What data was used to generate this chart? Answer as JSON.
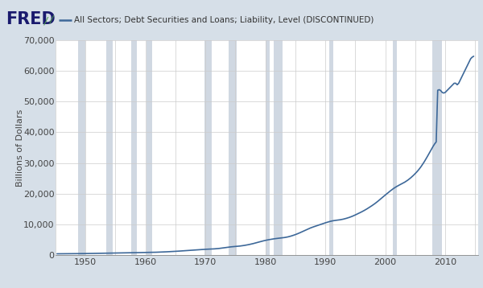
{
  "title": "All Sectors; Debt Securities and Loans; Liability, Level (DISCONTINUED)",
  "ylabel": "Billions of Dollars",
  "line_color": "#3d6899",
  "background_outer": "#d6dfe8",
  "background_inner": "#ffffff",
  "shading_color": "#d0d8e2",
  "ylim": [
    0,
    70000
  ],
  "yticks": [
    0,
    10000,
    20000,
    30000,
    40000,
    50000,
    60000,
    70000
  ],
  "xlim": [
    1945.0,
    2015.5
  ],
  "xticks": [
    1950,
    1960,
    1970,
    1980,
    1990,
    2000,
    2010
  ],
  "recession_bands": [
    [
      1948.75,
      1950.0
    ],
    [
      1953.5,
      1954.5
    ],
    [
      1957.6,
      1958.5
    ],
    [
      1960.2,
      1961.1
    ],
    [
      1969.9,
      1971.0
    ],
    [
      1973.9,
      1975.2
    ],
    [
      1980.0,
      1980.7
    ],
    [
      1981.4,
      1982.9
    ],
    [
      1990.6,
      1991.3
    ],
    [
      2001.2,
      2001.9
    ],
    [
      2007.9,
      2009.5
    ]
  ],
  "data": [
    [
      1945.25,
      352
    ],
    [
      1945.5,
      355
    ],
    [
      1945.75,
      356
    ],
    [
      1946.0,
      362
    ],
    [
      1946.25,
      368
    ],
    [
      1946.5,
      374
    ],
    [
      1946.75,
      378
    ],
    [
      1947.0,
      382
    ],
    [
      1947.25,
      388
    ],
    [
      1947.5,
      393
    ],
    [
      1947.75,
      398
    ],
    [
      1948.0,
      404
    ],
    [
      1948.25,
      410
    ],
    [
      1948.5,
      416
    ],
    [
      1948.75,
      421
    ],
    [
      1949.0,
      424
    ],
    [
      1949.25,
      426
    ],
    [
      1949.5,
      428
    ],
    [
      1949.75,
      430
    ],
    [
      1950.0,
      436
    ],
    [
      1950.25,
      444
    ],
    [
      1950.5,
      454
    ],
    [
      1950.75,
      464
    ],
    [
      1951.0,
      473
    ],
    [
      1951.25,
      482
    ],
    [
      1951.5,
      491
    ],
    [
      1951.75,
      500
    ],
    [
      1952.0,
      510
    ],
    [
      1952.25,
      519
    ],
    [
      1952.5,
      528
    ],
    [
      1952.75,
      537
    ],
    [
      1953.0,
      547
    ],
    [
      1953.25,
      556
    ],
    [
      1953.5,
      562
    ],
    [
      1953.75,
      566
    ],
    [
      1954.0,
      567
    ],
    [
      1954.25,
      569
    ],
    [
      1954.5,
      572
    ],
    [
      1954.75,
      578
    ],
    [
      1955.0,
      588
    ],
    [
      1955.25,
      601
    ],
    [
      1955.5,
      614
    ],
    [
      1955.75,
      628
    ],
    [
      1956.0,
      641
    ],
    [
      1956.25,
      653
    ],
    [
      1956.5,
      664
    ],
    [
      1956.75,
      674
    ],
    [
      1957.0,
      684
    ],
    [
      1957.25,
      694
    ],
    [
      1957.5,
      702
    ],
    [
      1957.75,
      708
    ],
    [
      1958.0,
      711
    ],
    [
      1958.25,
      714
    ],
    [
      1958.5,
      720
    ],
    [
      1958.75,
      729
    ],
    [
      1959.0,
      741
    ],
    [
      1959.25,
      756
    ],
    [
      1959.5,
      772
    ],
    [
      1959.75,
      788
    ],
    [
      1960.0,
      803
    ],
    [
      1960.25,
      815
    ],
    [
      1960.5,
      822
    ],
    [
      1960.75,
      826
    ],
    [
      1961.0,
      829
    ],
    [
      1961.25,
      836
    ],
    [
      1961.5,
      847
    ],
    [
      1961.75,
      861
    ],
    [
      1962.0,
      877
    ],
    [
      1962.25,
      895
    ],
    [
      1962.5,
      914
    ],
    [
      1962.75,
      934
    ],
    [
      1963.0,
      955
    ],
    [
      1963.25,
      977
    ],
    [
      1963.5,
      1000
    ],
    [
      1963.75,
      1024
    ],
    [
      1964.0,
      1049
    ],
    [
      1964.25,
      1075
    ],
    [
      1964.5,
      1102
    ],
    [
      1964.75,
      1129
    ],
    [
      1965.0,
      1157
    ],
    [
      1965.25,
      1187
    ],
    [
      1965.5,
      1218
    ],
    [
      1965.75,
      1250
    ],
    [
      1966.0,
      1283
    ],
    [
      1966.25,
      1317
    ],
    [
      1966.5,
      1350
    ],
    [
      1966.75,
      1382
    ],
    [
      1967.0,
      1413
    ],
    [
      1967.25,
      1443
    ],
    [
      1967.5,
      1472
    ],
    [
      1967.75,
      1501
    ],
    [
      1968.0,
      1531
    ],
    [
      1968.25,
      1565
    ],
    [
      1968.5,
      1601
    ],
    [
      1968.75,
      1639
    ],
    [
      1969.0,
      1679
    ],
    [
      1969.25,
      1720
    ],
    [
      1969.5,
      1759
    ],
    [
      1969.75,
      1794
    ],
    [
      1970.0,
      1824
    ],
    [
      1970.25,
      1848
    ],
    [
      1970.5,
      1868
    ],
    [
      1970.75,
      1886
    ],
    [
      1971.0,
      1906
    ],
    [
      1971.25,
      1933
    ],
    [
      1971.5,
      1965
    ],
    [
      1971.75,
      2001
    ],
    [
      1972.0,
      2043
    ],
    [
      1972.25,
      2093
    ],
    [
      1972.5,
      2150
    ],
    [
      1972.75,
      2212
    ],
    [
      1973.0,
      2279
    ],
    [
      1973.25,
      2350
    ],
    [
      1973.5,
      2422
    ],
    [
      1973.75,
      2492
    ],
    [
      1974.0,
      2558
    ],
    [
      1974.25,
      2618
    ],
    [
      1974.5,
      2671
    ],
    [
      1974.75,
      2716
    ],
    [
      1975.0,
      2754
    ],
    [
      1975.25,
      2789
    ],
    [
      1975.5,
      2831
    ],
    [
      1975.75,
      2883
    ],
    [
      1976.0,
      2943
    ],
    [
      1976.25,
      3012
    ],
    [
      1976.5,
      3090
    ],
    [
      1976.75,
      3174
    ],
    [
      1977.0,
      3264
    ],
    [
      1977.25,
      3362
    ],
    [
      1977.5,
      3468
    ],
    [
      1977.75,
      3580
    ],
    [
      1978.0,
      3699
    ],
    [
      1978.25,
      3825
    ],
    [
      1978.5,
      3958
    ],
    [
      1978.75,
      4093
    ],
    [
      1979.0,
      4228
    ],
    [
      1979.25,
      4362
    ],
    [
      1979.5,
      4492
    ],
    [
      1979.75,
      4615
    ],
    [
      1980.0,
      4730
    ],
    [
      1980.25,
      4835
    ],
    [
      1980.5,
      4931
    ],
    [
      1980.75,
      5020
    ],
    [
      1981.0,
      5103
    ],
    [
      1981.25,
      5183
    ],
    [
      1981.5,
      5258
    ],
    [
      1981.75,
      5325
    ],
    [
      1982.0,
      5385
    ],
    [
      1982.25,
      5440
    ],
    [
      1982.5,
      5494
    ],
    [
      1982.75,
      5549
    ],
    [
      1983.0,
      5608
    ],
    [
      1983.25,
      5678
    ],
    [
      1983.5,
      5764
    ],
    [
      1983.75,
      5867
    ],
    [
      1984.0,
      5987
    ],
    [
      1984.25,
      6124
    ],
    [
      1984.5,
      6276
    ],
    [
      1984.75,
      6439
    ],
    [
      1985.0,
      6612
    ],
    [
      1985.25,
      6799
    ],
    [
      1985.5,
      7000
    ],
    [
      1985.75,
      7213
    ],
    [
      1986.0,
      7436
    ],
    [
      1986.25,
      7666
    ],
    [
      1986.5,
      7898
    ],
    [
      1986.75,
      8127
    ],
    [
      1987.0,
      8349
    ],
    [
      1987.25,
      8561
    ],
    [
      1987.5,
      8762
    ],
    [
      1987.75,
      8950
    ],
    [
      1988.0,
      9126
    ],
    [
      1988.25,
      9294
    ],
    [
      1988.5,
      9460
    ],
    [
      1988.75,
      9625
    ],
    [
      1989.0,
      9791
    ],
    [
      1989.25,
      9958
    ],
    [
      1989.5,
      10124
    ],
    [
      1989.75,
      10288
    ],
    [
      1990.0,
      10450
    ],
    [
      1990.25,
      10607
    ],
    [
      1990.5,
      10757
    ],
    [
      1990.75,
      10896
    ],
    [
      1991.0,
      11020
    ],
    [
      1991.25,
      11122
    ],
    [
      1991.5,
      11204
    ],
    [
      1991.75,
      11271
    ],
    [
      1992.0,
      11329
    ],
    [
      1992.25,
      11390
    ],
    [
      1992.5,
      11463
    ],
    [
      1992.75,
      11554
    ],
    [
      1993.0,
      11661
    ],
    [
      1993.25,
      11784
    ],
    [
      1993.5,
      11920
    ],
    [
      1993.75,
      12067
    ],
    [
      1994.0,
      12226
    ],
    [
      1994.25,
      12402
    ],
    [
      1994.5,
      12596
    ],
    [
      1994.75,
      12806
    ],
    [
      1995.0,
      13029
    ],
    [
      1995.25,
      13261
    ],
    [
      1995.5,
      13498
    ],
    [
      1995.75,
      13737
    ],
    [
      1996.0,
      13978
    ],
    [
      1996.25,
      14231
    ],
    [
      1996.5,
      14499
    ],
    [
      1996.75,
      14780
    ],
    [
      1997.0,
      15073
    ],
    [
      1997.25,
      15380
    ],
    [
      1997.5,
      15697
    ],
    [
      1997.75,
      16022
    ],
    [
      1998.0,
      16354
    ],
    [
      1998.25,
      16702
    ],
    [
      1998.5,
      17072
    ],
    [
      1998.75,
      17462
    ],
    [
      1999.0,
      17867
    ],
    [
      1999.25,
      18282
    ],
    [
      1999.5,
      18700
    ],
    [
      1999.75,
      19117
    ],
    [
      2000.0,
      19526
    ],
    [
      2000.25,
      19929
    ],
    [
      2000.5,
      20327
    ],
    [
      2000.75,
      20720
    ],
    [
      2001.0,
      21105
    ],
    [
      2001.25,
      21473
    ],
    [
      2001.5,
      21816
    ],
    [
      2001.75,
      22131
    ],
    [
      2002.0,
      22417
    ],
    [
      2002.25,
      22685
    ],
    [
      2002.5,
      22943
    ],
    [
      2002.75,
      23196
    ],
    [
      2003.0,
      23450
    ],
    [
      2003.25,
      23724
    ],
    [
      2003.5,
      24030
    ],
    [
      2003.75,
      24370
    ],
    [
      2004.0,
      24742
    ],
    [
      2004.25,
      25145
    ],
    [
      2004.5,
      25577
    ],
    [
      2004.75,
      26035
    ],
    [
      2005.0,
      26519
    ],
    [
      2005.25,
      27040
    ],
    [
      2005.5,
      27606
    ],
    [
      2005.75,
      28218
    ],
    [
      2006.0,
      28878
    ],
    [
      2006.25,
      29590
    ],
    [
      2006.5,
      30353
    ],
    [
      2006.75,
      31162
    ],
    [
      2007.0,
      32010
    ],
    [
      2007.25,
      32887
    ],
    [
      2007.5,
      33773
    ],
    [
      2007.75,
      34646
    ],
    [
      2008.0,
      35477
    ],
    [
      2008.25,
      36230
    ],
    [
      2008.5,
      36856
    ],
    [
      2008.75,
      53700
    ],
    [
      2009.0,
      53900
    ],
    [
      2009.25,
      53600
    ],
    [
      2009.5,
      53000
    ],
    [
      2009.75,
      52800
    ],
    [
      2010.0,
      53000
    ],
    [
      2010.25,
      53500
    ],
    [
      2010.5,
      54000
    ],
    [
      2010.75,
      54500
    ],
    [
      2011.0,
      55000
    ],
    [
      2011.25,
      55500
    ],
    [
      2011.5,
      56000
    ],
    [
      2011.75,
      56000
    ],
    [
      2012.0,
      55500
    ],
    [
      2012.25,
      56000
    ],
    [
      2012.5,
      57000
    ],
    [
      2012.75,
      58000
    ],
    [
      2013.0,
      59000
    ],
    [
      2013.25,
      60000
    ],
    [
      2013.5,
      61000
    ],
    [
      2013.75,
      62000
    ],
    [
      2014.0,
      63000
    ],
    [
      2014.25,
      64000
    ],
    [
      2014.5,
      64500
    ],
    [
      2014.75,
      64800
    ]
  ],
  "fred_logo_color": "#1a1a6e",
  "line_width": 1.2
}
